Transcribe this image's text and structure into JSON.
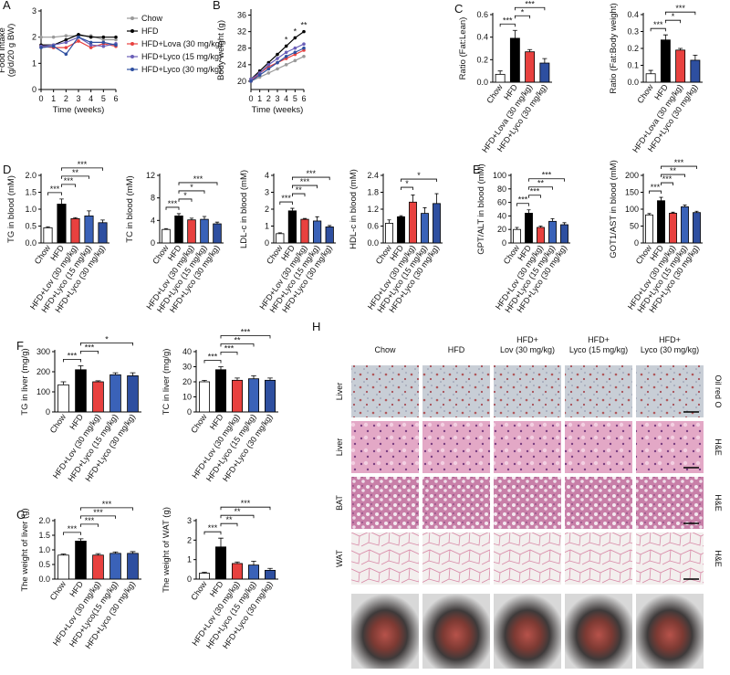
{
  "chart_data": [
    {
      "type": "line",
      "panel": "A",
      "y_label": [
        "Food intake",
        "(g/d/20 g BW)"
      ],
      "x_label": "Time (weeks)",
      "x": [
        0,
        1,
        2,
        3,
        4,
        5,
        6
      ],
      "xlim": [
        0,
        6
      ],
      "xticks": [
        0,
        1,
        2,
        3,
        4,
        5,
        6
      ],
      "ylim": [
        0,
        3
      ],
      "yticks": [
        0,
        1,
        2,
        3
      ],
      "legend": "right",
      "series": [
        {
          "name": "Chow",
          "color": "#9a9a9a",
          "values": [
            2.0,
            2.0,
            2.05,
            2.05,
            2.05,
            1.9,
            1.9
          ]
        },
        {
          "name": "HFD",
          "color": "#000000",
          "values": [
            1.7,
            1.7,
            1.9,
            2.1,
            2.0,
            2.0,
            2.0
          ]
        },
        {
          "name": "HFD+Lova (30 mg/kg)",
          "color": "#e8413f",
          "values": [
            1.65,
            1.6,
            1.6,
            1.85,
            1.6,
            1.75,
            1.65
          ]
        },
        {
          "name": "HFD+Lyco (15 mg/kg)",
          "color": "#6a5fb8",
          "values": [
            1.65,
            1.7,
            1.8,
            2.0,
            1.7,
            1.65,
            1.75
          ]
        },
        {
          "name": "HFD+Lyco (30 mg/kg)",
          "color": "#2e4fa0",
          "values": [
            1.6,
            1.65,
            1.35,
            2.0,
            1.8,
            1.8,
            1.7
          ]
        }
      ]
    },
    {
      "type": "line",
      "panel": "B",
      "y_label": "Body weight (g)",
      "x_label": "Time (weeks)",
      "x": [
        0,
        1,
        2,
        3,
        4,
        5,
        6
      ],
      "xlim": [
        0,
        6
      ],
      "xticks": [
        0,
        1,
        2,
        3,
        4,
        5,
        6
      ],
      "ylim": [
        18,
        37
      ],
      "yticks": [
        20,
        24,
        28,
        32,
        36
      ],
      "annotations": [
        {
          "x": 4,
          "label": "*"
        },
        {
          "x": 5,
          "label": "*"
        },
        {
          "x": 6,
          "label": "**"
        }
      ],
      "series": [
        {
          "name": "Chow",
          "color": "#9a9a9a",
          "values": [
            20,
            21,
            22,
            23,
            24,
            25,
            26
          ]
        },
        {
          "name": "HFD",
          "color": "#000000",
          "values": [
            20.5,
            22.5,
            24.5,
            26.5,
            28.5,
            30.5,
            32
          ]
        },
        {
          "name": "HFD+Lova (30 mg/kg)",
          "color": "#e8413f",
          "values": [
            20,
            22,
            23.5,
            24.5,
            25.5,
            26.5,
            27.5
          ]
        },
        {
          "name": "HFD+Lyco (15 mg/kg)",
          "color": "#6a5fb8",
          "values": [
            20.5,
            22,
            24,
            25.5,
            27,
            28,
            29
          ]
        },
        {
          "name": "HFD+Lyco (30 mg/kg)",
          "color": "#2e4fa0",
          "values": [
            20,
            21.5,
            23,
            24.5,
            26,
            27,
            28
          ]
        }
      ]
    },
    {
      "type": "bar",
      "panel": "C",
      "y_label": "Ratio (Fat:Lean)",
      "categories": [
        "Chow",
        "HFD",
        "HFD+Lova (30 mg/kg)",
        "HFD+Lyco (30 mg/kg)"
      ],
      "values": [
        0.07,
        0.39,
        0.27,
        0.17
      ],
      "errors": [
        0.03,
        0.07,
        0.02,
        0.04
      ],
      "colors": [
        "#ffffff",
        "#000000",
        "#e8413f",
        "#2e4fa0"
      ],
      "ylim": [
        0,
        0.6
      ],
      "yticks": [
        {
          "value": 0,
          "label": "0.0"
        },
        0.2,
        0.4,
        0.6
      ],
      "brackets": [
        {
          "pair": [
            0,
            1
          ],
          "label": "***"
        },
        {
          "pair": [
            1,
            2
          ],
          "label": "*"
        },
        {
          "pair": [
            1,
            3
          ],
          "label": "***"
        }
      ]
    },
    {
      "type": "bar",
      "y_label": "Ratio (Fat:Body weight)",
      "categories": [
        "Chow",
        "HFD",
        "HFD+Lova (30 mg/kg)",
        "HFD+Lyco (30 mg/kg)"
      ],
      "values": [
        0.05,
        0.25,
        0.19,
        0.13
      ],
      "errors": [
        0.02,
        0.03,
        0.01,
        0.03
      ],
      "colors": [
        "#ffffff",
        "#000000",
        "#e8413f",
        "#2e4fa0"
      ],
      "ylim": [
        0,
        0.4
      ],
      "yticks": [
        {
          "value": 0,
          "label": "0.0"
        },
        0.1,
        0.2,
        0.3,
        0.4
      ],
      "brackets": [
        {
          "pair": [
            0,
            1
          ],
          "label": "***"
        },
        {
          "pair": [
            1,
            2
          ],
          "label": "*"
        },
        {
          "pair": [
            1,
            3
          ],
          "label": "***"
        }
      ]
    },
    {
      "type": "bar",
      "panel": "D",
      "y_label": "TG in blood (mM)",
      "categories": [
        "Chow",
        "HFD",
        "HFD+Lov (30 mg/kg)",
        "HFD+Lyco (15 mg/kg)",
        "HFD+Lyco (30 mg/kg)"
      ],
      "values": [
        0.45,
        1.15,
        0.72,
        0.8,
        0.6
      ],
      "errors": [
        0.03,
        0.15,
        0.03,
        0.15,
        0.08
      ],
      "colors": [
        "#ffffff",
        "#000000",
        "#e8413f",
        "#3a62b8",
        "#2e4fa0"
      ],
      "ylim": [
        0,
        2
      ],
      "yticks": [
        {
          "value": 0,
          "label": "0.0"
        },
        0.5,
        {
          "value": 1,
          "label": "1.0"
        },
        1.5,
        {
          "value": 2,
          "label": "2.0"
        }
      ],
      "brackets": [
        {
          "pair": [
            0,
            1
          ],
          "label": "***"
        },
        {
          "pair": [
            1,
            2
          ],
          "label": "***"
        },
        {
          "pair": [
            1,
            3
          ],
          "label": "**"
        },
        {
          "pair": [
            1,
            4
          ],
          "label": "***"
        }
      ]
    },
    {
      "type": "bar",
      "y_label": "TC in blood (mM)",
      "categories": [
        "Chow",
        "HFD",
        "HFD+Lov (30 mg/kg)",
        "HFD+Lyco (15 mg/kg)",
        "HFD+Lyco (30 mg/kg)"
      ],
      "values": [
        2.4,
        4.8,
        4.1,
        4.2,
        3.4
      ],
      "errors": [
        0.15,
        0.4,
        0.3,
        0.5,
        0.3
      ],
      "colors": [
        "#ffffff",
        "#000000",
        "#e8413f",
        "#3a62b8",
        "#2e4fa0"
      ],
      "ylim": [
        0,
        12
      ],
      "yticks": [
        0,
        4,
        8,
        12
      ],
      "brackets": [
        {
          "pair": [
            0,
            1
          ],
          "label": "***"
        },
        {
          "pair": [
            1,
            2
          ],
          "label": "*"
        },
        {
          "pair": [
            1,
            3
          ],
          "label": "*"
        },
        {
          "pair": [
            1,
            4
          ],
          "label": "***"
        }
      ]
    },
    {
      "type": "bar",
      "y_label": "LDL-c in blood (mM)",
      "categories": [
        "Chow",
        "HFD",
        "HFD+Lov (30 mg/kg)",
        "HFD+Lyco (15 mg/kg)",
        "HFD+Lyco (30 mg/kg)"
      ],
      "values": [
        0.55,
        1.9,
        1.4,
        1.3,
        0.95
      ],
      "errors": [
        0.05,
        0.15,
        0.05,
        0.25,
        0.08
      ],
      "colors": [
        "#ffffff",
        "#000000",
        "#e8413f",
        "#3a62b8",
        "#2e4fa0"
      ],
      "ylim": [
        0,
        4
      ],
      "yticks": [
        0,
        1,
        2,
        3,
        4
      ],
      "brackets": [
        {
          "pair": [
            0,
            1
          ],
          "label": "***"
        },
        {
          "pair": [
            1,
            2
          ],
          "label": "**"
        },
        {
          "pair": [
            1,
            3
          ],
          "label": "***"
        },
        {
          "pair": [
            1,
            4
          ],
          "label": "***"
        }
      ]
    },
    {
      "type": "bar",
      "y_label": "HDL-c in blood (mM)",
      "categories": [
        "Chow",
        "HFD",
        "HFD+Lov (30 mg/kg)",
        "HFD+Lyco (15 mg/kg)",
        "HFD+Lyco (30 mg/kg)"
      ],
      "values": [
        0.7,
        0.93,
        1.45,
        1.05,
        1.4
      ],
      "errors": [
        0.12,
        0.04,
        0.25,
        0.2,
        0.35
      ],
      "colors": [
        "#ffffff",
        "#000000",
        "#e8413f",
        "#3a62b8",
        "#2e4fa0"
      ],
      "ylim": [
        0,
        2.4
      ],
      "yticks": [
        {
          "value": 0,
          "label": "0.0"
        },
        0.6,
        1.2,
        1.8,
        2.4
      ],
      "brackets": [
        {
          "pair": [
            1,
            2
          ],
          "label": "*"
        },
        {
          "pair": [
            1,
            4
          ],
          "label": "*"
        }
      ]
    },
    {
      "type": "bar",
      "panel": "E",
      "y_label": "GPT/ALT in blood (mM)",
      "categories": [
        "Chow",
        "HFD",
        "HFD+Lov (30 mg/kg)",
        "HFD+Lyco (15 mg/kg)",
        "HFD+Lyco (30 mg/kg)"
      ],
      "values": [
        20,
        44,
        23,
        32,
        27
      ],
      "errors": [
        3,
        5,
        2,
        4,
        3
      ],
      "colors": [
        "#ffffff",
        "#000000",
        "#e8413f",
        "#3a62b8",
        "#2e4fa0"
      ],
      "ylim": [
        0,
        100
      ],
      "yticks": [
        0,
        20,
        40,
        60,
        80,
        100
      ],
      "brackets": [
        {
          "pair": [
            0,
            1
          ],
          "label": "***"
        },
        {
          "pair": [
            1,
            2
          ],
          "label": "***"
        },
        {
          "pair": [
            1,
            3
          ],
          "label": "**"
        },
        {
          "pair": [
            1,
            4
          ],
          "label": "***"
        }
      ]
    },
    {
      "type": "bar",
      "y_label": "GOT1/AST in blood (mM)",
      "categories": [
        "Chow",
        "HFD",
        "HFD+Lov (30 mg/kg)",
        "HFD+Lyco (15 mg/kg)",
        "HFD+Lyco (30 mg/kg)"
      ],
      "values": [
        83,
        125,
        88,
        107,
        90
      ],
      "errors": [
        4,
        10,
        3,
        5,
        4
      ],
      "colors": [
        "#ffffff",
        "#000000",
        "#e8413f",
        "#3a62b8",
        "#2e4fa0"
      ],
      "ylim": [
        0,
        200
      ],
      "yticks": [
        0,
        50,
        100,
        150,
        200
      ],
      "brackets": [
        {
          "pair": [
            0,
            1
          ],
          "label": "***"
        },
        {
          "pair": [
            1,
            2
          ],
          "label": "***"
        },
        {
          "pair": [
            1,
            3
          ],
          "label": "**"
        },
        {
          "pair": [
            1,
            4
          ],
          "label": "***"
        }
      ]
    },
    {
      "type": "bar",
      "panel": "F",
      "y_label": "TG in liver (mg/g)",
      "categories": [
        "Chow",
        "HFD",
        "HFD+Lov (30 mg/kg)",
        "HFD+Lyco (15 mg/kg)",
        "HFD+Lyco (30 mg/kg)"
      ],
      "values": [
        135,
        210,
        150,
        185,
        180
      ],
      "errors": [
        15,
        20,
        5,
        10,
        15
      ],
      "colors": [
        "#ffffff",
        "#000000",
        "#e8413f",
        "#3a62b8",
        "#2e4fa0"
      ],
      "ylim": [
        0,
        300
      ],
      "yticks": [
        0,
        100,
        200,
        300
      ],
      "brackets": [
        {
          "pair": [
            0,
            1
          ],
          "label": "***"
        },
        {
          "pair": [
            1,
            2
          ],
          "label": "***"
        },
        {
          "pair": [
            1,
            4
          ],
          "label": "*"
        }
      ]
    },
    {
      "type": "bar",
      "y_label": "TC in liver (mg/g)",
      "categories": [
        "Chow",
        "HFD",
        "HFD+Lov (30 mg/kg)",
        "HFD+Lyco (15 mg/kg)",
        "HFD+Lyco (30 mg/kg)"
      ],
      "values": [
        20,
        28,
        21,
        22,
        21
      ],
      "errors": [
        1,
        2,
        1.5,
        2,
        1.5
      ],
      "colors": [
        "#ffffff",
        "#000000",
        "#e8413f",
        "#3a62b8",
        "#2e4fa0"
      ],
      "ylim": [
        0,
        40
      ],
      "yticks": [
        0,
        10,
        20,
        30,
        40
      ],
      "brackets": [
        {
          "pair": [
            0,
            1
          ],
          "label": "***"
        },
        {
          "pair": [
            1,
            2
          ],
          "label": "***"
        },
        {
          "pair": [
            1,
            3
          ],
          "label": "**"
        },
        {
          "pair": [
            1,
            4
          ],
          "label": "***"
        }
      ]
    },
    {
      "type": "bar",
      "panel": "G",
      "y_label": "The weight of liver (g)",
      "categories": [
        "Chow",
        "HFD",
        "HFD+Lov (30 mg/kg)",
        "HFD+Lyco(15 mg/kg)",
        "HFD+Lyco (30 mg/kg)"
      ],
      "values": [
        0.82,
        1.3,
        0.82,
        0.88,
        0.88
      ],
      "errors": [
        0.04,
        0.08,
        0.05,
        0.05,
        0.06
      ],
      "colors": [
        "#ffffff",
        "#000000",
        "#e8413f",
        "#3a62b8",
        "#2e4fa0"
      ],
      "ylim": [
        0,
        2
      ],
      "yticks": [
        {
          "value": 0,
          "label": "0.0"
        },
        0.5,
        {
          "value": 1,
          "label": "1.0"
        },
        1.5,
        {
          "value": 2,
          "label": "2.0"
        }
      ],
      "brackets": [
        {
          "pair": [
            0,
            1
          ],
          "label": "***"
        },
        {
          "pair": [
            1,
            2
          ],
          "label": "***"
        },
        {
          "pair": [
            1,
            3
          ],
          "label": "***"
        },
        {
          "pair": [
            1,
            4
          ],
          "label": "***"
        }
      ]
    },
    {
      "type": "bar",
      "y_label": "The weight of WAT (g)",
      "categories": [
        "Chow",
        "HFD",
        "HFD+Lov (30 mg/kg)",
        "HFD+Lyco (15 mg/kg)",
        "HFD+Lyco (30 mg/kg)"
      ],
      "values": [
        0.3,
        1.65,
        0.8,
        0.72,
        0.45
      ],
      "errors": [
        0.05,
        0.45,
        0.08,
        0.2,
        0.1
      ],
      "colors": [
        "#ffffff",
        "#000000",
        "#e8413f",
        "#3a62b8",
        "#2e4fa0"
      ],
      "ylim": [
        0,
        3
      ],
      "yticks": [
        0,
        1,
        2,
        3
      ],
      "brackets": [
        {
          "pair": [
            0,
            1
          ],
          "label": "***"
        },
        {
          "pair": [
            1,
            2
          ],
          "label": "**"
        },
        {
          "pair": [
            1,
            3
          ],
          "label": "**"
        },
        {
          "pair": [
            1,
            4
          ],
          "label": "***"
        }
      ]
    }
  ],
  "histology": {
    "panel": "H",
    "columns": [
      "Chow",
      "HFD",
      [
        "HFD+",
        "Lov (30 mg/kg)"
      ],
      [
        "HFD+",
        "Lyco (15 mg/kg)"
      ],
      [
        "HFD+",
        "Lyco (30 mg/kg)"
      ]
    ],
    "rows": [
      {
        "tissue": "Liver",
        "stain": "Oil red O"
      },
      {
        "tissue": "Liver",
        "stain": "H&E"
      },
      {
        "tissue": "BAT",
        "stain": "H&E"
      },
      {
        "tissue": "WAT",
        "stain": "H&E"
      }
    ]
  }
}
